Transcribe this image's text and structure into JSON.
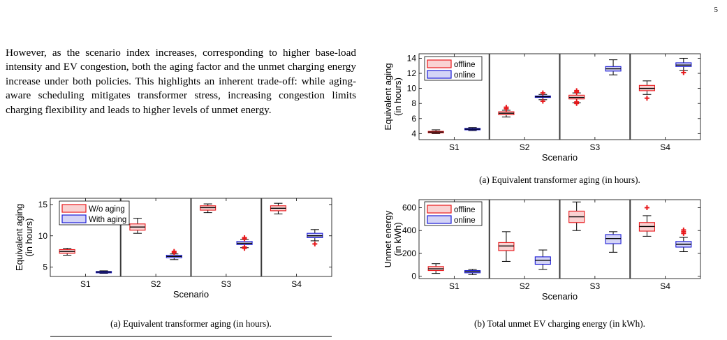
{
  "page_number": "5",
  "paragraph": "However, as the scenario index increases, corresponding to higher base-load intensity and EV congestion, both the aging factor and the unmet charging energy increase under both policies. This highlights an inherent trade-off: while aging-aware scheduling mitigates transformer stress, increasing congestion limits charging flexibility and leads to higher levels of unmet energy.",
  "colors": {
    "red": "#e8191c",
    "red_fill": "#f9d2d2",
    "blue": "#1b1bd6",
    "blue_fill": "#d4d4f6",
    "median": "#000000"
  },
  "captions": {
    "left": "(a) Equivalent transformer aging (in hours).",
    "right_top": "(a) Equivalent transformer aging (in hours).",
    "right_bottom": "(b) Total unmet EV charging energy (in kWh)."
  },
  "chart_data": [
    {
      "id": "left",
      "type": "boxplot",
      "ylabel": [
        "Equivalent aging",
        "(in hours)"
      ],
      "xlabel": "Scenario",
      "categories": [
        "S1",
        "S2",
        "S3",
        "S4"
      ],
      "ylim": [
        3.5,
        16
      ],
      "yticks": [
        5,
        10,
        15
      ],
      "legend_position": "top-left",
      "series": [
        {
          "name": "W/o aging",
          "color": "red",
          "boxes": [
            {
              "min": 6.9,
              "q1": 7.2,
              "med": 7.5,
              "q3": 7.8,
              "max": 8.0,
              "outliers": []
            },
            {
              "min": 10.4,
              "q1": 10.9,
              "med": 11.4,
              "q3": 11.9,
              "max": 12.8,
              "outliers": []
            },
            {
              "min": 13.7,
              "q1": 14.1,
              "med": 14.5,
              "q3": 14.8,
              "max": 15.1,
              "outliers": []
            },
            {
              "min": 13.5,
              "q1": 14.0,
              "med": 14.4,
              "q3": 14.8,
              "max": 15.2,
              "outliers": []
            }
          ]
        },
        {
          "name": "With aging",
          "color": "blue",
          "boxes": [
            {
              "min": 4.0,
              "q1": 4.1,
              "med": 4.2,
              "q3": 4.3,
              "max": 4.4,
              "outliers": []
            },
            {
              "min": 6.2,
              "q1": 6.5,
              "med": 6.7,
              "q3": 6.9,
              "max": 7.1,
              "outliers": [
                7.5,
                7.3
              ]
            },
            {
              "min": 8.1,
              "q1": 8.6,
              "med": 8.8,
              "q3": 9.1,
              "max": 9.4,
              "outliers": [
                9.7,
                9.5,
                8.2,
                8.0
              ]
            },
            {
              "min": 9.2,
              "q1": 9.7,
              "med": 10.0,
              "q3": 10.4,
              "max": 11.0,
              "outliers": [
                8.7
              ]
            }
          ]
        }
      ]
    },
    {
      "id": "right_top",
      "type": "boxplot",
      "ylabel": [
        "Equivalent aging",
        "(in hours)"
      ],
      "xlabel": "Scenario",
      "categories": [
        "S1",
        "S2",
        "S3",
        "S4"
      ],
      "ylim": [
        3.2,
        14.6
      ],
      "yticks": [
        4,
        6,
        8,
        10,
        12,
        14
      ],
      "legend_position": "top-left",
      "series": [
        {
          "name": "offline",
          "color": "red",
          "boxes": [
            {
              "min": 4.0,
              "q1": 4.1,
              "med": 4.2,
              "q3": 4.3,
              "max": 4.5,
              "outliers": []
            },
            {
              "min": 6.2,
              "q1": 6.5,
              "med": 6.7,
              "q3": 6.9,
              "max": 7.1,
              "outliers": [
                7.5,
                7.3
              ]
            },
            {
              "min": 8.1,
              "q1": 8.6,
              "med": 8.8,
              "q3": 9.1,
              "max": 9.4,
              "outliers": [
                9.7,
                9.5,
                8.2,
                8.0
              ]
            },
            {
              "min": 9.2,
              "q1": 9.7,
              "med": 10.0,
              "q3": 10.4,
              "max": 11.0,
              "outliers": [
                8.7
              ]
            }
          ]
        },
        {
          "name": "online",
          "color": "blue",
          "boxes": [
            {
              "min": 4.4,
              "q1": 4.5,
              "med": 4.6,
              "q3": 4.7,
              "max": 4.8,
              "outliers": []
            },
            {
              "min": 8.5,
              "q1": 8.8,
              "med": 8.9,
              "q3": 9.0,
              "max": 9.2,
              "outliers": [
                9.4,
                8.3
              ]
            },
            {
              "min": 11.8,
              "q1": 12.3,
              "med": 12.6,
              "q3": 12.9,
              "max": 13.8,
              "outliers": []
            },
            {
              "min": 12.4,
              "q1": 12.9,
              "med": 13.1,
              "q3": 13.4,
              "max": 14.0,
              "outliers": [
                12.1
              ]
            }
          ]
        }
      ]
    },
    {
      "id": "right_bottom",
      "type": "boxplot",
      "ylabel": [
        "Unmet energy",
        "(in kWh)"
      ],
      "xlabel": "Scenario",
      "categories": [
        "S1",
        "S2",
        "S3",
        "S4"
      ],
      "ylim": [
        -20,
        670
      ],
      "yticks": [
        0,
        200,
        400,
        600
      ],
      "legend_position": "top-left",
      "series": [
        {
          "name": "offline",
          "color": "red",
          "boxes": [
            {
              "min": 25,
              "q1": 50,
              "med": 65,
              "q3": 85,
              "max": 110,
              "outliers": []
            },
            {
              "min": 130,
              "q1": 225,
              "med": 265,
              "q3": 295,
              "max": 390,
              "outliers": []
            },
            {
              "min": 400,
              "q1": 470,
              "med": 520,
              "q3": 570,
              "max": 650,
              "outliers": []
            },
            {
              "min": 350,
              "q1": 395,
              "med": 435,
              "q3": 470,
              "max": 530,
              "outliers": [
                600
              ]
            }
          ]
        },
        {
          "name": "online",
          "color": "blue",
          "boxes": [
            {
              "min": 15,
              "q1": 30,
              "med": 40,
              "q3": 50,
              "max": 60,
              "outliers": []
            },
            {
              "min": 60,
              "q1": 105,
              "med": 140,
              "q3": 170,
              "max": 230,
              "outliers": []
            },
            {
              "min": 210,
              "q1": 285,
              "med": 330,
              "q3": 365,
              "max": 390,
              "outliers": []
            },
            {
              "min": 215,
              "q1": 255,
              "med": 280,
              "q3": 305,
              "max": 340,
              "outliers": [
                390,
                405,
                375
              ]
            }
          ]
        }
      ]
    }
  ]
}
